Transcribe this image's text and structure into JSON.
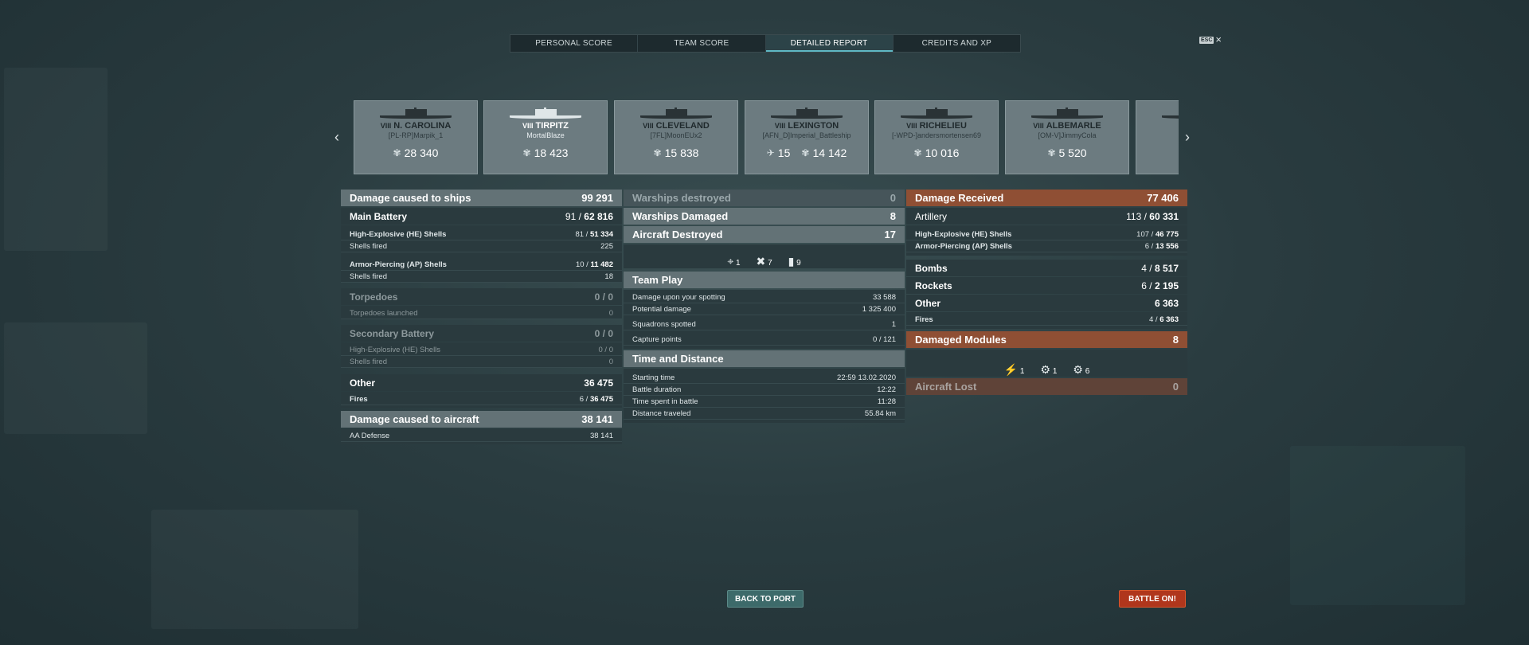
{
  "tabs": [
    "PERSONAL SCORE",
    "TEAM SCORE",
    "DETAILED REPORT",
    "CREDITS AND XP"
  ],
  "esc": {
    "key": "ESC",
    "close": "×"
  },
  "carousel": {
    "prev": "‹",
    "next": "›",
    "ships": [
      {
        "tier": "VIII",
        "name": "N. CAROLINA",
        "player": "[PL-RP]Marpik_1",
        "score": "28 340",
        "kills": ""
      },
      {
        "tier": "VIII",
        "name": "TIRPITZ",
        "player": "MortalBlaze",
        "score": "18 423",
        "kills": "",
        "highlight": true
      },
      {
        "tier": "VIII",
        "name": "CLEVELAND",
        "player": "[7FL]MoonEUx2",
        "score": "15 838",
        "kills": ""
      },
      {
        "tier": "VIII",
        "name": "LEXINGTON",
        "player": "[AFN_D]Imperial_Battleship",
        "score": "14 142",
        "kills": "15"
      },
      {
        "tier": "VIII",
        "name": "RICHELIEU",
        "player": "[-WPD-]andersmortensen69",
        "score": "10 016",
        "kills": ""
      },
      {
        "tier": "VIII",
        "name": "ALBEMARLE",
        "player": "[OM-V]JimmyCola",
        "score": "5 520",
        "kills": ""
      }
    ]
  },
  "left": {
    "damage_ships": {
      "label": "Damage caused to ships",
      "value": "99 291"
    },
    "main_battery": {
      "label": "Main Battery",
      "hits": "91",
      "dmg": "62 816"
    },
    "he": {
      "label": "High-Explosive (HE) Shells",
      "hits": "81",
      "dmg": "51 334"
    },
    "he_fired": {
      "label": "Shells fired",
      "value": "225"
    },
    "ap": {
      "label": "Armor-Piercing (AP) Shells",
      "hits": "10",
      "dmg": "11 482"
    },
    "ap_fired": {
      "label": "Shells fired",
      "value": "18"
    },
    "torpedoes": {
      "label": "Torpedoes",
      "value": "0 / 0"
    },
    "torp_launched": {
      "label": "Torpedoes launched",
      "value": "0"
    },
    "secondary": {
      "label": "Secondary Battery",
      "value": "0 / 0"
    },
    "sec_he": {
      "label": "High-Explosive (HE) Shells",
      "value": "0 / 0"
    },
    "sec_fired": {
      "label": "Shells fired",
      "value": "0"
    },
    "other": {
      "label": "Other",
      "value": "36 475"
    },
    "fires": {
      "label": "Fires",
      "hits": "6",
      "dmg": "36 475"
    },
    "damage_aircraft": {
      "label": "Damage caused to aircraft",
      "value": "38 141"
    },
    "aa": {
      "label": "AA Defense",
      "value": "38 141"
    }
  },
  "mid": {
    "warships_destroyed": {
      "label": "Warships destroyed",
      "value": "0"
    },
    "warships_damaged": {
      "label": "Warships Damaged",
      "value": "8"
    },
    "aircraft_destroyed": {
      "label": "Aircraft Destroyed",
      "value": "17"
    },
    "ribbons": [
      {
        "icon": "crosshair-icon",
        "count": "1"
      },
      {
        "icon": "plane-down-icon",
        "count": "7"
      },
      {
        "icon": "bomb-icon",
        "count": "9"
      }
    ],
    "team_play": "Team Play",
    "spotting_dmg": {
      "label": "Damage upon your spotting",
      "value": "33 588"
    },
    "potential": {
      "label": "Potential damage",
      "value": "1 325 400"
    },
    "squadrons": {
      "label": "Squadrons spotted",
      "value": "1"
    },
    "capture": {
      "label": "Capture points",
      "value": "0 / 121"
    },
    "time_distance": "Time and Distance",
    "start": {
      "label": "Starting time",
      "value": "22:59  13.02.2020"
    },
    "duration": {
      "label": "Battle duration",
      "value": "12:22"
    },
    "spent": {
      "label": "Time spent in battle",
      "value": "11:28"
    },
    "distance": {
      "label": "Distance traveled",
      "value": "55.84 km"
    }
  },
  "right": {
    "received": {
      "label": "Damage Received",
      "value": "77 406"
    },
    "artillery": {
      "label": "Artillery",
      "hits": "113",
      "dmg": "60 331"
    },
    "he": {
      "label": "High-Explosive (HE) Shells",
      "hits": "107",
      "dmg": "46 775"
    },
    "ap": {
      "label": "Armor-Piercing (AP) Shells",
      "hits": "6",
      "dmg": "13 556"
    },
    "bombs": {
      "label": "Bombs",
      "hits": "4",
      "dmg": "8 517"
    },
    "rockets": {
      "label": "Rockets",
      "hits": "6",
      "dmg": "2 195"
    },
    "other": {
      "label": "Other",
      "value": "6 363"
    },
    "fires": {
      "label": "Fires",
      "hits": "4",
      "dmg": "6 363"
    },
    "modules": {
      "label": "Damaged Modules",
      "value": "8"
    },
    "module_icons": [
      {
        "icon": "engine-icon",
        "count": "1"
      },
      {
        "icon": "steering-icon",
        "count": "1"
      },
      {
        "icon": "turret-icon",
        "count": "6"
      }
    ],
    "aircraft_lost": {
      "label": "Aircraft Lost",
      "value": "0"
    }
  },
  "buttons": {
    "back": "BACK TO PORT",
    "battle": "BATTLE ON!"
  }
}
